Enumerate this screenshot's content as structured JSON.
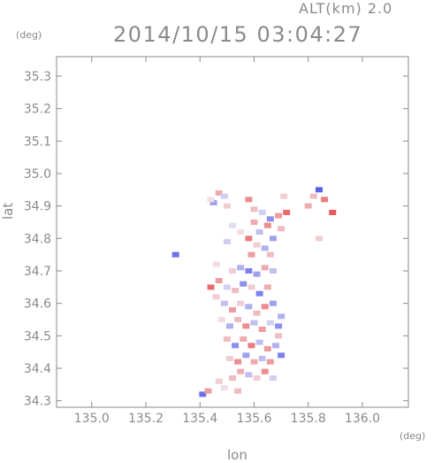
{
  "header": {
    "altitude": "ALT(km) 2.0",
    "datetime": "2014/10/15 03:04:27"
  },
  "chart_data": {
    "type": "scatter",
    "title": "2014/10/15 03:04:27",
    "xlabel": "lon",
    "ylabel": "lat",
    "x_unit": "(deg)",
    "y_unit": "(deg)",
    "xlim": [
      134.87,
      136.17
    ],
    "ylim": [
      34.28,
      35.36
    ],
    "x_ticks": [
      135.0,
      135.2,
      135.4,
      135.6,
      135.8,
      136.0
    ],
    "x_tick_labels": [
      "135.0",
      "135.2",
      "135.4",
      "135.6",
      "135.8",
      "136.0"
    ],
    "y_ticks": [
      34.3,
      34.4,
      34.5,
      34.6,
      34.7,
      34.8,
      34.9,
      35.0,
      35.1,
      35.2,
      35.3
    ],
    "y_tick_labels": [
      "34.3",
      "34.4",
      "34.5",
      "34.6",
      "34.7",
      "34.8",
      "34.9",
      "35.0",
      "35.1",
      "35.2",
      "35.3"
    ],
    "grid": false,
    "colors": {
      "positive": "#e84a4a",
      "negative": "#4a52e8",
      "neutral": "#f2eef4",
      "axis": "#8a8a8a"
    },
    "series": [
      {
        "points": [
          [
            135.47,
            34.94,
            0.4
          ],
          [
            135.45,
            34.91,
            -0.5
          ],
          [
            135.49,
            34.93,
            -0.2
          ],
          [
            135.44,
            34.92,
            0.1
          ],
          [
            135.5,
            34.9,
            0.2
          ],
          [
            135.58,
            34.92,
            0.6
          ],
          [
            135.6,
            34.89,
            0.3
          ],
          [
            135.63,
            34.88,
            -0.2
          ],
          [
            135.66,
            34.86,
            -0.6
          ],
          [
            135.69,
            34.87,
            0.5
          ],
          [
            135.72,
            34.88,
            0.8
          ],
          [
            135.71,
            34.93,
            0.2
          ],
          [
            135.6,
            34.85,
            0.4
          ],
          [
            135.62,
            34.82,
            -0.3
          ],
          [
            135.65,
            34.84,
            0.6
          ],
          [
            135.67,
            34.8,
            -0.5
          ],
          [
            135.7,
            34.83,
            0.3
          ],
          [
            135.58,
            34.8,
            0.7
          ],
          [
            135.61,
            34.78,
            0.2
          ],
          [
            135.64,
            34.77,
            -0.4
          ],
          [
            135.59,
            34.75,
            0.5
          ],
          [
            135.66,
            34.75,
            0.3
          ],
          [
            135.55,
            34.82,
            0.1
          ],
          [
            135.52,
            34.84,
            -0.1
          ],
          [
            135.5,
            34.79,
            -0.2
          ],
          [
            135.84,
            34.95,
            -0.9
          ],
          [
            135.82,
            34.93,
            0.3
          ],
          [
            135.86,
            34.92,
            0.7
          ],
          [
            135.89,
            34.88,
            0.9
          ],
          [
            135.8,
            34.9,
            0.4
          ],
          [
            135.84,
            34.8,
            0.2
          ],
          [
            135.31,
            34.75,
            -0.8
          ],
          [
            135.46,
            34.72,
            0.1
          ],
          [
            135.52,
            34.7,
            0.2
          ],
          [
            135.55,
            34.71,
            -0.4
          ],
          [
            135.58,
            34.7,
            -0.7
          ],
          [
            135.61,
            34.69,
            -0.5
          ],
          [
            135.64,
            34.71,
            0.4
          ],
          [
            135.67,
            34.7,
            -0.3
          ],
          [
            135.47,
            34.67,
            0.5
          ],
          [
            135.5,
            34.65,
            -0.2
          ],
          [
            135.53,
            34.64,
            0.3
          ],
          [
            135.56,
            34.66,
            -0.6
          ],
          [
            135.59,
            34.65,
            0.2
          ],
          [
            135.62,
            34.63,
            -0.7
          ],
          [
            135.65,
            34.65,
            0.4
          ],
          [
            135.44,
            34.65,
            0.8
          ],
          [
            135.46,
            34.62,
            0.2
          ],
          [
            135.49,
            34.6,
            -0.3
          ],
          [
            135.52,
            34.58,
            0.5
          ],
          [
            135.55,
            34.6,
            0.2
          ],
          [
            135.58,
            34.59,
            -0.4
          ],
          [
            135.61,
            34.57,
            0.3
          ],
          [
            135.64,
            34.59,
            0.6
          ],
          [
            135.67,
            34.6,
            -0.5
          ],
          [
            135.48,
            34.55,
            0.1
          ],
          [
            135.51,
            34.53,
            -0.4
          ],
          [
            135.54,
            34.55,
            0.3
          ],
          [
            135.57,
            34.53,
            0.6
          ],
          [
            135.6,
            34.54,
            -0.3
          ],
          [
            135.63,
            34.52,
            0.5
          ],
          [
            135.66,
            34.54,
            -0.2
          ],
          [
            135.69,
            34.53,
            -0.6
          ],
          [
            135.5,
            34.49,
            0.3
          ],
          [
            135.53,
            34.47,
            -0.6
          ],
          [
            135.56,
            34.49,
            0.4
          ],
          [
            135.59,
            34.47,
            0.7
          ],
          [
            135.62,
            34.48,
            -0.3
          ],
          [
            135.65,
            34.46,
            0.5
          ],
          [
            135.68,
            34.47,
            -0.4
          ],
          [
            135.51,
            34.43,
            0.2
          ],
          [
            135.54,
            34.42,
            0.6
          ],
          [
            135.57,
            34.44,
            -0.5
          ],
          [
            135.6,
            34.42,
            0.4
          ],
          [
            135.63,
            34.43,
            -0.3
          ],
          [
            135.66,
            34.42,
            0.5
          ],
          [
            135.7,
            34.44,
            -0.7
          ],
          [
            135.55,
            34.39,
            0.4
          ],
          [
            135.58,
            34.38,
            -0.3
          ],
          [
            135.61,
            34.37,
            0.2
          ],
          [
            135.64,
            34.39,
            0.6
          ],
          [
            135.67,
            34.37,
            -0.2
          ],
          [
            135.52,
            34.37,
            0.3
          ],
          [
            135.47,
            34.36,
            0.2
          ],
          [
            135.41,
            34.32,
            -0.8
          ],
          [
            135.43,
            34.33,
            0.5
          ],
          [
            135.54,
            34.33,
            0.3
          ],
          [
            135.49,
            34.34,
            0.1
          ],
          [
            135.69,
            34.5,
            0.3
          ],
          [
            135.7,
            34.56,
            -0.4
          ]
        ]
      }
    ]
  }
}
